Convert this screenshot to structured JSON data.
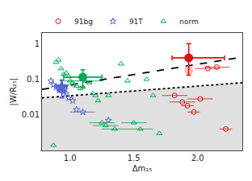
{
  "chart_data": {
    "type": "scatter",
    "xlabel": "Δm₁₅",
    "ylabel": "|W/R₂₅|",
    "log": "y",
    "grid": false,
    "legend": "upper left",
    "xlim": [
      0.78,
      2.35
    ],
    "ylim": [
      0.001,
      2.0
    ],
    "xticks": [
      {
        "value": 1.0,
        "label": "1.0"
      },
      {
        "value": 1.5,
        "label": "1.5"
      },
      {
        "value": 2.0,
        "label": "2.0"
      }
    ],
    "yticks": [
      0.01,
      0.1,
      1
    ],
    "lines": [
      {
        "x": [
          0.78,
          2.35
        ],
        "y": [
          0.052,
          0.42
        ],
        "line_style": "dashed",
        "color": "black"
      },
      {
        "x": [
          0.78,
          2.35
        ],
        "y": [
          0.03,
          0.08
        ],
        "line_style": "dotted",
        "color": "black",
        "fill_color": "#e0e0e0"
      }
    ],
    "series": [
      {
        "name": "norm",
        "color": "#00aa55",
        "marker": "triangle-up-open",
        "x": [
          0.87,
          0.89,
          0.91,
          0.93,
          0.95,
          0.97,
          0.99,
          1.0,
          1.02,
          1.03,
          1.05,
          1.08,
          1.1,
          1.12,
          1.15,
          1.18,
          1.2,
          1.22,
          1.25,
          1.28,
          1.3,
          1.35,
          1.4,
          1.45,
          1.5,
          1.55,
          1.6,
          1.65,
          1.7
        ],
        "values": [
          0.0014,
          0.3,
          0.35,
          0.2,
          0.14,
          0.15,
          0.12,
          0.09,
          0.08,
          0.07,
          0.065,
          0.055,
          0.06,
          0.09,
          0.08,
          0.04,
          0.035,
          0.025,
          0.006,
          0.005,
          0.035,
          0.004,
          0.27,
          0.09,
          0.006,
          0.004,
          0.1,
          0.035,
          0.003
        ],
        "xerr_lo": [
          0.0,
          0.0,
          0.0,
          0.0,
          0.0,
          0.0,
          0.0,
          0.08,
          0.0,
          0.0,
          0.0,
          0.0,
          0.0,
          0.14,
          0.0,
          0.0,
          0.0,
          0.0,
          0.1,
          0.1,
          0.0,
          0.1,
          0.0,
          0.0,
          0.1,
          0.1,
          0.0,
          0.0,
          0.0
        ],
        "xerr_hi": [
          0.0,
          0.0,
          0.0,
          0.0,
          0.0,
          0.0,
          0.0,
          0.08,
          0.0,
          0.0,
          0.0,
          0.0,
          0.0,
          0.14,
          0.0,
          0.0,
          0.0,
          0.0,
          0.1,
          0.1,
          0.0,
          0.1,
          0.0,
          0.0,
          0.1,
          0.1,
          0.0,
          0.0,
          0.0
        ],
        "median": {
          "x": 1.1,
          "y": 0.115,
          "xerr_lo": 0.15,
          "xerr_hi": 0.15,
          "yerr_lo": 0.055,
          "yerr_hi": 0.07,
          "marker": "circle"
        }
      },
      {
        "name": "91T",
        "color": "#5566cc",
        "marker": "star-open",
        "x": [
          0.85,
          0.87,
          0.89,
          0.91,
          0.93,
          0.94,
          0.95,
          0.96,
          0.97,
          0.99,
          1.02,
          1.05,
          1.1,
          1.3
        ],
        "values": [
          0.09,
          0.07,
          0.06,
          0.055,
          0.05,
          0.048,
          0.045,
          0.06,
          0.04,
          0.03,
          0.025,
          0.014,
          0.012,
          0.007
        ],
        "xerr_lo": [
          0.0,
          0.0,
          0.0,
          0.0,
          0.0,
          0.0,
          0.0,
          0.0,
          0.0,
          0.0,
          0.0,
          0.0,
          0.1,
          0.0
        ],
        "xerr_hi": [
          0.0,
          0.0,
          0.0,
          0.0,
          0.0,
          0.0,
          0.0,
          0.0,
          0.0,
          0.0,
          0.0,
          0.0,
          0.1,
          0.0
        ],
        "median": {
          "x": 0.935,
          "y": 0.06,
          "xerr_lo": 0.04,
          "xerr_hi": 0.04,
          "yerr_lo": 0.03,
          "yerr_hi": 0.035,
          "marker": "star"
        }
      },
      {
        "name": "91bg",
        "color": "#dd1111",
        "marker": "circle-open",
        "x": [
          1.82,
          1.88,
          1.92,
          1.97,
          2.02,
          2.08,
          2.15,
          2.22
        ],
        "values": [
          0.035,
          0.023,
          0.018,
          0.012,
          0.028,
          0.2,
          0.22,
          0.004
        ],
        "xerr_lo": [
          0.1,
          0.1,
          0.05,
          0.05,
          0.1,
          0.1,
          0.1,
          0.05
        ],
        "xerr_hi": [
          0.1,
          0.1,
          0.05,
          0.05,
          0.1,
          0.1,
          0.1,
          0.05
        ],
        "median": {
          "x": 1.93,
          "y": 0.4,
          "xerr_lo": 0.13,
          "xerr_hi": 0.28,
          "yerr_lo": 0.27,
          "yerr_hi": 0.6,
          "marker": "circle"
        },
        "shadow": {
          "x": 1.93,
          "y": 0.18,
          "color": "#ff9999"
        }
      }
    ]
  }
}
